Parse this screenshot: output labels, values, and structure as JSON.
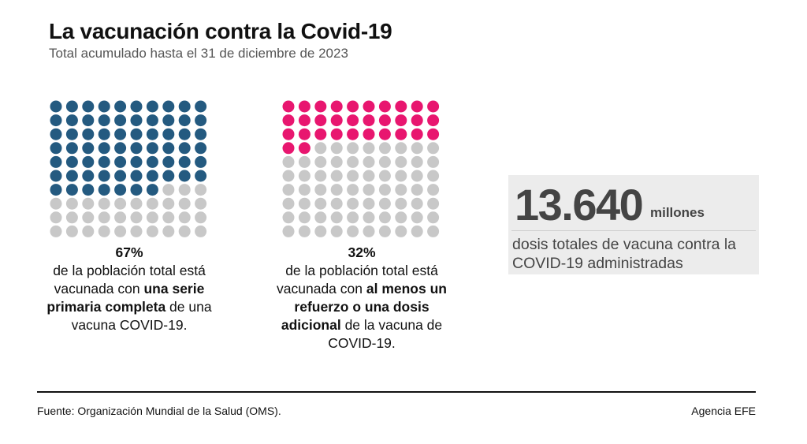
{
  "header": {
    "title": "La vacunación contra la Covid-19",
    "subtitle": "Total acumulado hasta el 31 de diciembre de 2023"
  },
  "chart_data": [
    {
      "type": "waffle",
      "total": 100,
      "filled": 67,
      "filled_color": "#245a80",
      "empty_color": "#c8c8c8",
      "percent_label": "67%",
      "caption": {
        "pre": "de la población total está vacunada con ",
        "bold": "una serie primaria completa",
        "post": " de una vacuna COVID-19."
      }
    },
    {
      "type": "waffle",
      "total": 100,
      "filled": 32,
      "filled_color": "#e8166f",
      "empty_color": "#c8c8c8",
      "percent_label": "32%",
      "caption": {
        "pre": "de la población total está vacunada con ",
        "bold": "al menos un refuerzo o una dosis adicional",
        "post": " de la vacuna de COVID-19."
      }
    }
  ],
  "stat": {
    "number": "13.640",
    "unit": "millones",
    "description": "dosis totales de vacuna contra la COVID-19 administradas"
  },
  "footer": {
    "source": "Fuente: Organización Mundial de la Salud (OMS).",
    "credit": "Agencia EFE"
  }
}
